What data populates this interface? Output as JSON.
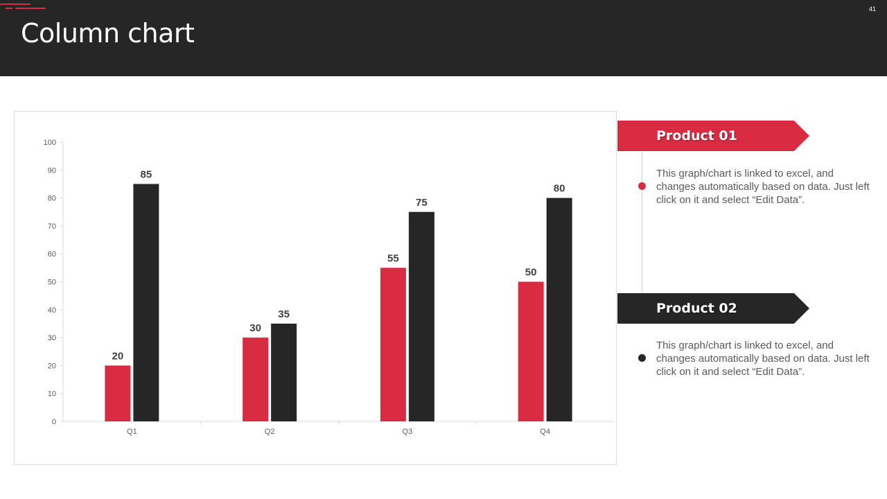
{
  "slide": {
    "title": "Column chart",
    "page_number": "41"
  },
  "colors": {
    "header_bg": "#262626",
    "accent_red": "#d92c43",
    "dark": "#262626",
    "text_gray": "#595959"
  },
  "chart_data": {
    "type": "bar",
    "categories": [
      "Q1",
      "Q2",
      "Q3",
      "Q4"
    ],
    "series": [
      {
        "values": [
          20,
          30,
          55,
          50
        ],
        "color": "#d92c43"
      },
      {
        "values": [
          85,
          35,
          75,
          80
        ],
        "color": "#262626"
      }
    ],
    "ylim": [
      0,
      100
    ],
    "yticks": [
      0,
      10,
      20,
      30,
      40,
      50,
      60,
      70,
      80,
      90,
      100
    ],
    "data_labels": true,
    "grid": false
  },
  "products": [
    {
      "title": "Product 01",
      "description": "This graph/chart is linked to excel, and changes automatically based on data. Just left click on it and select “Edit Data”.",
      "color": "#d92c43"
    },
    {
      "title": "Product 02",
      "description": "This graph/chart is linked to excel, and changes automatically based on data. Just left click on it and select “Edit Data”.",
      "color": "#262626"
    }
  ]
}
